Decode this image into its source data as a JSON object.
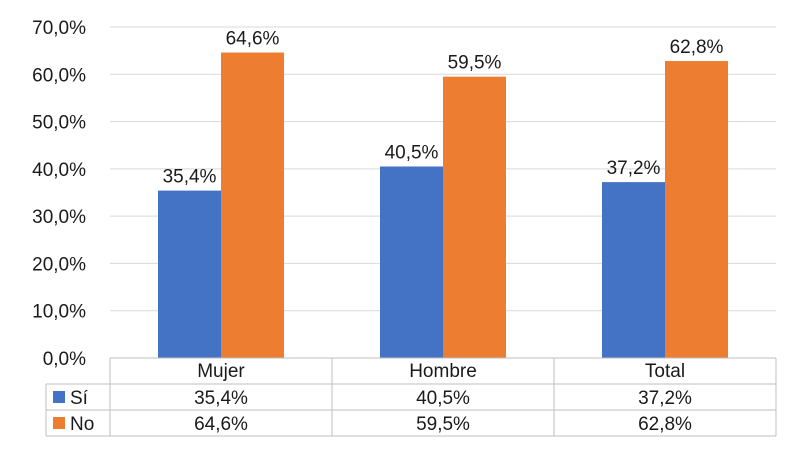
{
  "chart_data": {
    "type": "bar",
    "categories": [
      "Mujer",
      "Hombre",
      "Total"
    ],
    "series": [
      {
        "name": "Sí",
        "values": [
          35.4,
          40.5,
          37.2
        ],
        "color": "#4472C4",
        "labels": [
          "35,4%",
          "40,5%",
          "37,2%"
        ]
      },
      {
        "name": "No",
        "values": [
          64.6,
          59.5,
          62.8
        ],
        "color": "#ED7D31",
        "labels": [
          "64,6%",
          "59,5%",
          "62,8%"
        ]
      }
    ],
    "ylim": [
      0,
      70
    ],
    "yticks": [
      "0,0%",
      "10,0%",
      "20,0%",
      "30,0%",
      "40,0%",
      "50,0%",
      "60,0%",
      "70,0%"
    ],
    "grid": true,
    "data_table": true
  }
}
